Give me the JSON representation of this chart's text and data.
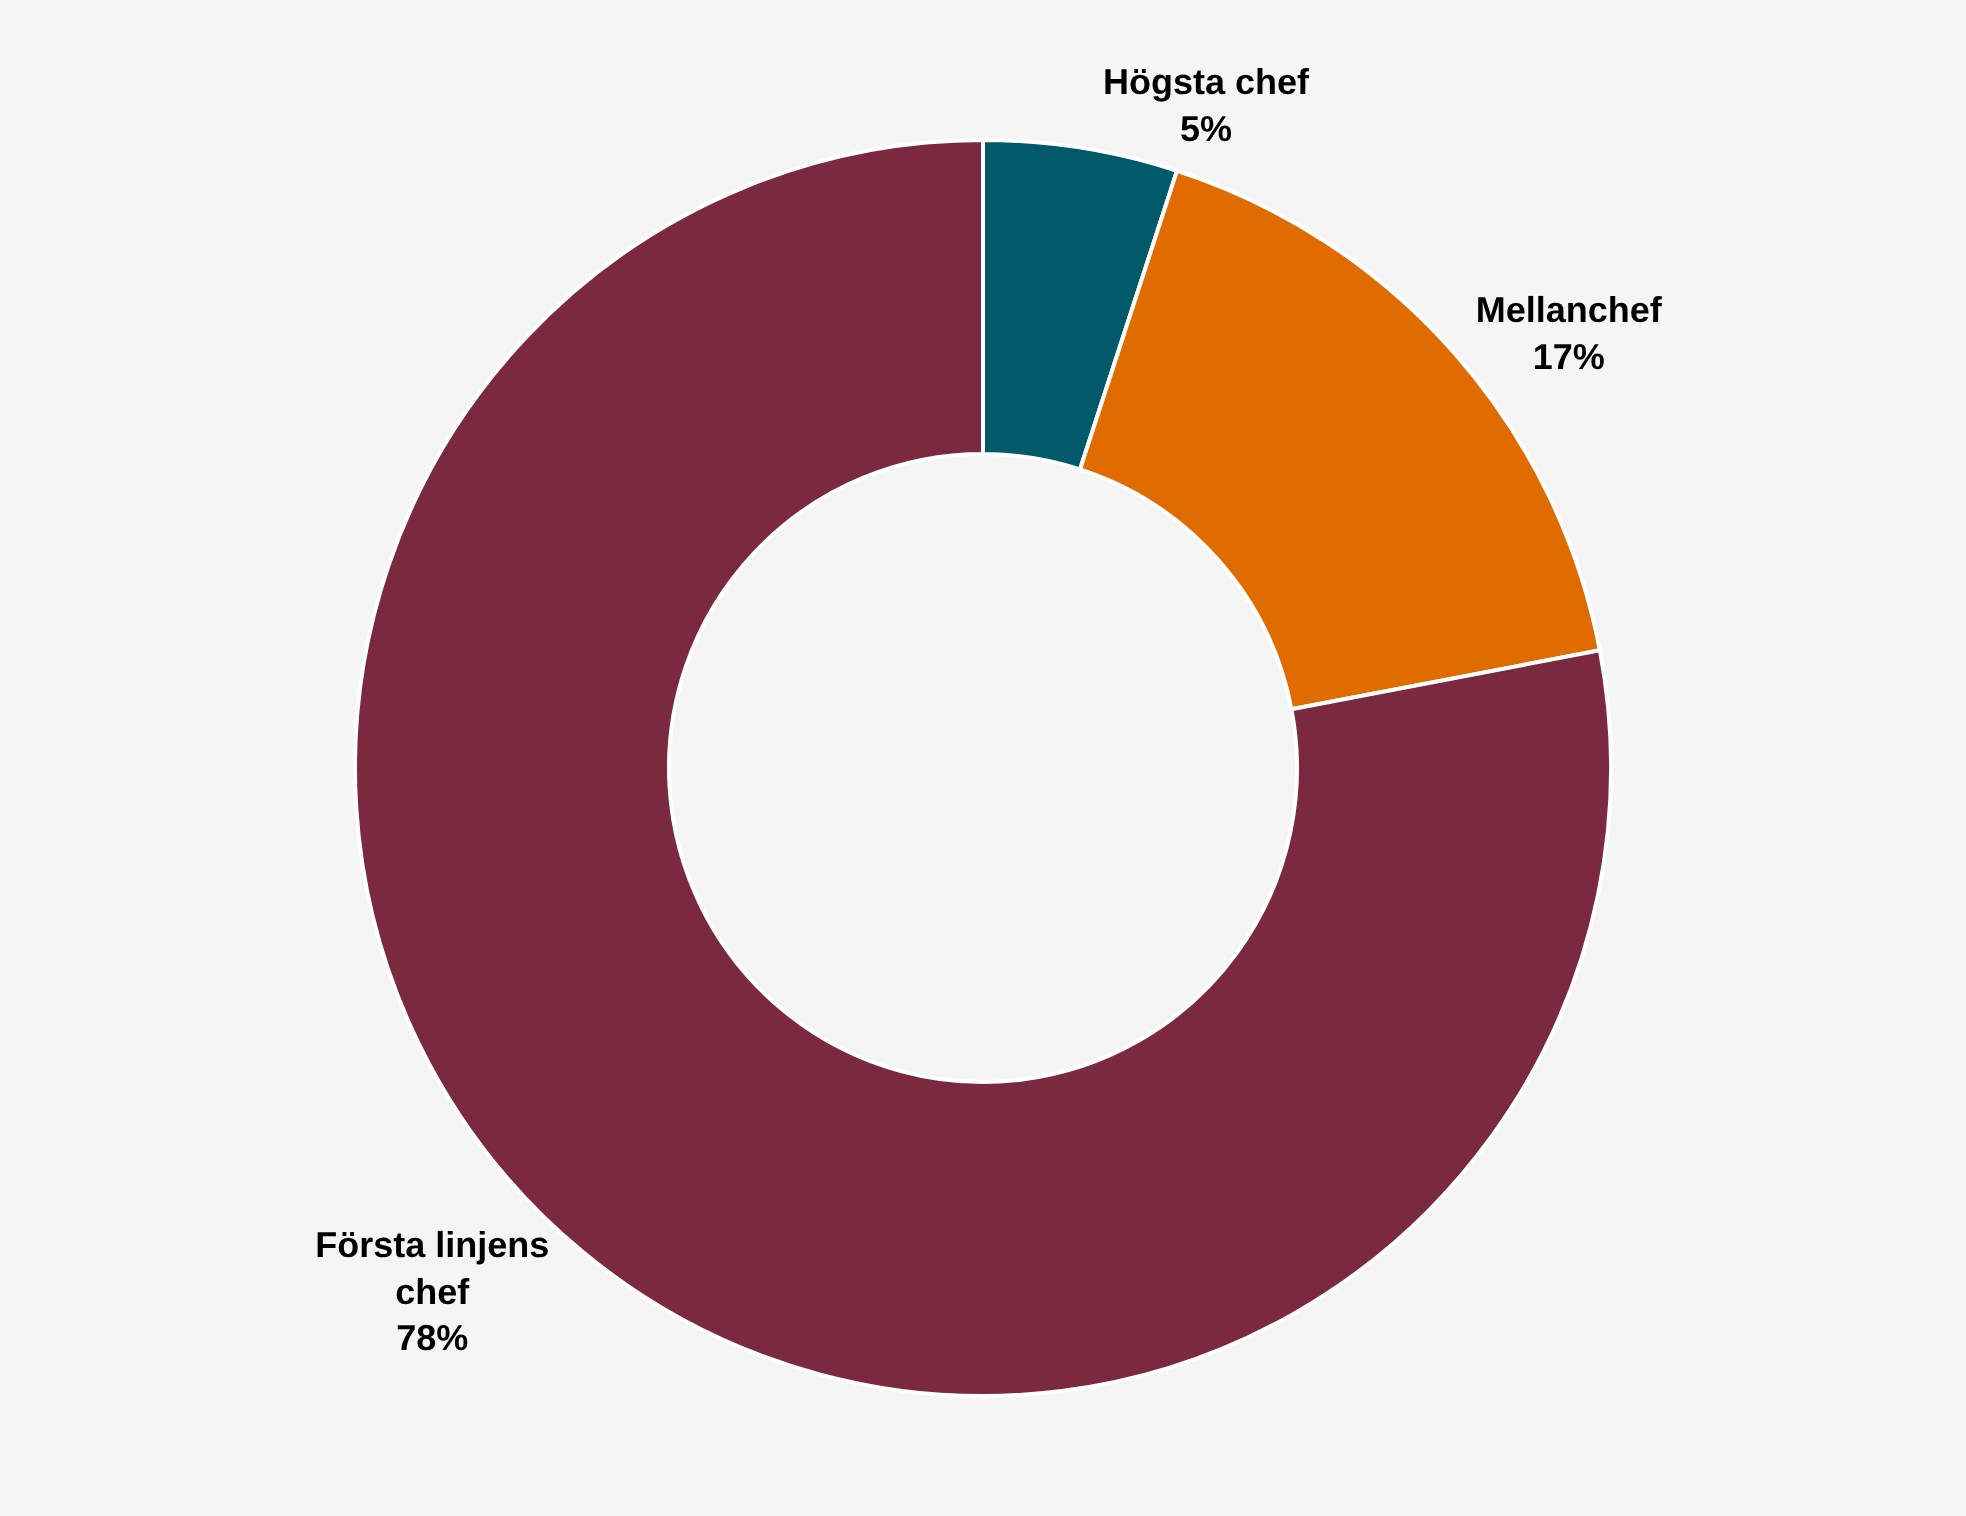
{
  "chart_data": {
    "type": "donut",
    "categories": [
      "Högsta chef",
      "Mellanchef",
      "Första linjens chef"
    ],
    "values": [
      5,
      17,
      78
    ],
    "value_labels": [
      "5%",
      "17%",
      "78%"
    ],
    "colors": [
      "#005a6a",
      "#e06c00",
      "#7a2940"
    ],
    "legend": false
  }
}
